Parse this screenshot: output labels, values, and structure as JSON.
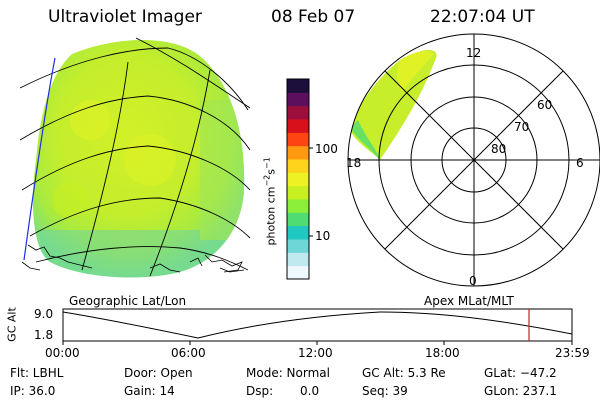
{
  "header": {
    "instrument": "Ultraviolet Imager",
    "date": "08 Feb 07",
    "time": "22:07:04 UT"
  },
  "geo_panel": {
    "caption": "Geographic Lat/Lon"
  },
  "polar_panel": {
    "caption": "Apex MLat/MLT",
    "mlt_labels": [
      "12",
      "18",
      "6",
      "0"
    ],
    "mlat_labels": [
      "60",
      "70",
      "80"
    ]
  },
  "colorbar": {
    "unit_label": "photon cm",
    "unit_exp1": "−2",
    "unit_mid": "s",
    "unit_exp2": "−1",
    "ticks": [
      "100",
      "10"
    ],
    "colors": [
      "#f0f8ff",
      "#bfe8ef",
      "#6fd6d8",
      "#1fc8c0",
      "#4fdc72",
      "#8cef3a",
      "#c8f020",
      "#eef224",
      "#ffd21c",
      "#ff9a10",
      "#ff4414",
      "#d8101c",
      "#9c0f3c",
      "#5c0f5c",
      "#1c0f3c"
    ]
  },
  "altitude_plot": {
    "ylabel": "GC Alt",
    "y_ticks": [
      "9.0",
      "1.8"
    ],
    "x_ticks": [
      "00:00",
      "06:00",
      "12:00",
      "18:00",
      "23:59"
    ],
    "current_marker_color": "#cc2222"
  },
  "footer": {
    "filter": "Flt: LBHL",
    "ip": "IP: 36.0",
    "door": "Door: Open",
    "gain": "Gain: 14",
    "mode": "Mode: Normal",
    "dsp_label": "Dsp:",
    "dsp_value": "0.0",
    "gc_alt": "GC Alt: 5.3 Re",
    "seq": "Seq: 39",
    "glat": "GLat: −47.2",
    "glon": "GLon: 237.1"
  }
}
